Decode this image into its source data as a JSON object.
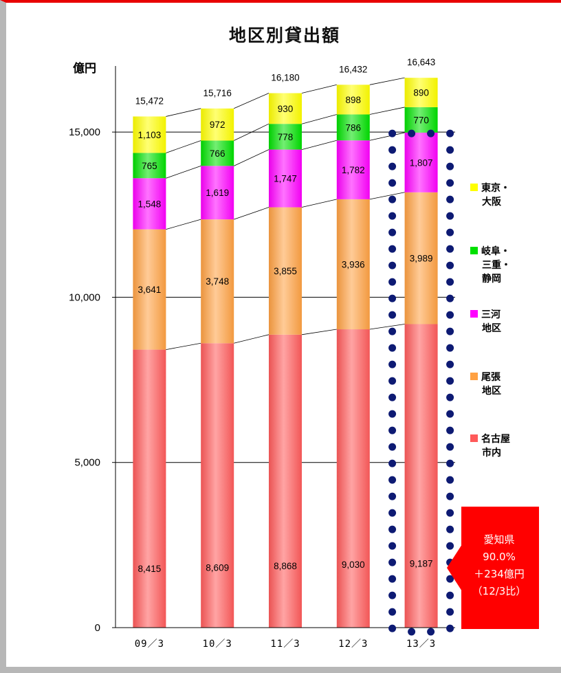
{
  "chart_data": {
    "type": "bar",
    "stacked": true,
    "title": "地区別貸出額",
    "ylabel": "億円",
    "ylim": [
      0,
      17000
    ],
    "yticks": [
      0,
      5000,
      10000,
      15000
    ],
    "ytick_labels": [
      "0",
      "5,000",
      "10,000",
      "15,000"
    ],
    "grid": true,
    "categories": [
      "09／3",
      "10／3",
      "11／3",
      "12／3",
      "13／3"
    ],
    "series": [
      {
        "name": "名古屋市内",
        "name_lines": [
          "名古屋",
          "市内"
        ],
        "color": "#ff5a5a",
        "values": [
          8415,
          8609,
          8868,
          9030,
          9187
        ],
        "labels": [
          "8,415",
          "8,609",
          "8,868",
          "9,030",
          "9,187"
        ]
      },
      {
        "name": "尾張地区",
        "name_lines": [
          "尾張",
          "地区"
        ],
        "color": "#ffa142",
        "values": [
          3641,
          3748,
          3855,
          3936,
          3989
        ],
        "labels": [
          "3,641",
          "3,748",
          "3,855",
          "3,936",
          "3,989"
        ]
      },
      {
        "name": "三河地区",
        "name_lines": [
          "三河",
          "地区"
        ],
        "color": "#ff00ff",
        "values": [
          1548,
          1619,
          1747,
          1782,
          1807
        ],
        "labels": [
          "1,548",
          "1,619",
          "1,747",
          "1,782",
          "1,807"
        ]
      },
      {
        "name": "岐阜・三重・静岡",
        "name_lines": [
          "岐阜・",
          "三重・",
          "静岡"
        ],
        "color": "#00e000",
        "values": [
          765,
          766,
          778,
          786,
          770
        ],
        "labels": [
          "765",
          "766",
          "778",
          "786",
          "770"
        ]
      },
      {
        "name": "東京・大阪",
        "name_lines": [
          "東京・",
          "大阪"
        ],
        "color": "#ffff00",
        "values": [
          1103,
          972,
          930,
          898,
          890
        ],
        "labels": [
          "1,103",
          "972",
          "930",
          "898",
          "890"
        ]
      }
    ],
    "totals": [
      15472,
      15716,
      16180,
      16432,
      16643
    ],
    "total_labels": [
      "15,472",
      "15,716",
      "16,180",
      "16,432",
      "16,643"
    ],
    "legend_position": "right",
    "highlight_category": "13／3",
    "annotation": {
      "lines": [
        "愛知県",
        "90.0%",
        "＋234億円",
        "（12/3比）"
      ],
      "color": "#ff0000"
    }
  }
}
